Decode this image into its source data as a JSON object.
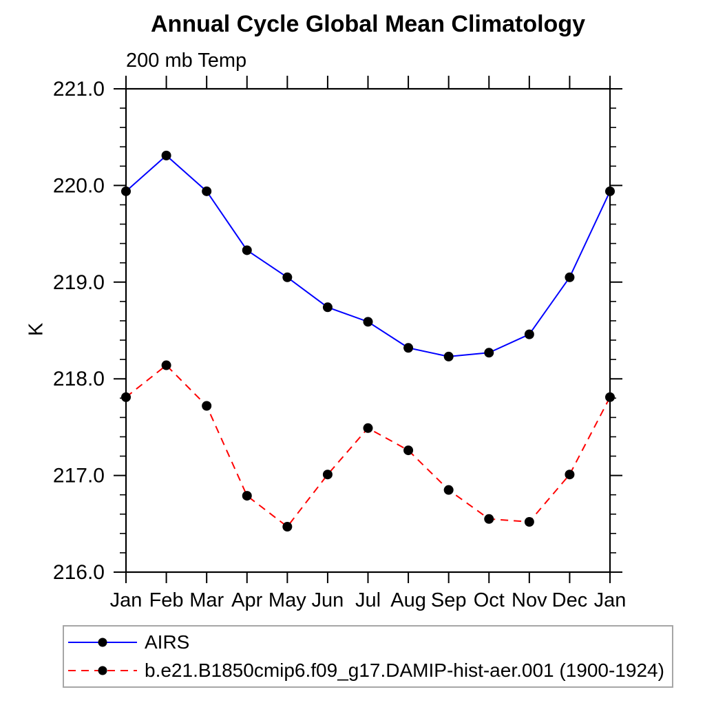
{
  "header": {
    "title": "Annual Cycle Global Mean Climatology"
  },
  "chart_data": {
    "type": "line",
    "title": "Annual Cycle Global Mean Climatology",
    "subtitle": "200 mb Temp",
    "ylabel": "K",
    "categories": [
      "Jan",
      "Feb",
      "Mar",
      "Apr",
      "May",
      "Jun",
      "Jul",
      "Aug",
      "Sep",
      "Oct",
      "Nov",
      "Dec",
      "Jan"
    ],
    "y_ticks": [
      216.0,
      217.0,
      218.0,
      219.0,
      220.0,
      221.0
    ],
    "y_tick_labels": [
      "216.0",
      "217.0",
      "218.0",
      "219.0",
      "220.0",
      "221.0"
    ],
    "ylim": [
      216.0,
      221.0
    ],
    "minor_tick_interval": 0.2,
    "grid": false,
    "legend_position": "bottom-left",
    "axis_color": "#000000",
    "series": [
      {
        "name": "AIRS",
        "color": "#0000ff",
        "style": "solid",
        "marker": "circle",
        "marker_color": "#000000",
        "values": [
          219.94,
          220.31,
          219.94,
          219.33,
          219.05,
          218.74,
          218.59,
          218.32,
          218.23,
          218.27,
          218.46,
          219.05,
          219.94
        ]
      },
      {
        "name": "b.e21.B1850cmip6.f09_g17.DAMIP-hist-aer.001 (1900-1924)",
        "color": "#ff0000",
        "style": "dashed",
        "marker": "circle",
        "marker_color": "#000000",
        "values": [
          217.81,
          218.14,
          217.72,
          216.79,
          216.47,
          217.01,
          217.49,
          217.26,
          216.85,
          216.55,
          216.52,
          217.01,
          217.81
        ]
      }
    ]
  }
}
